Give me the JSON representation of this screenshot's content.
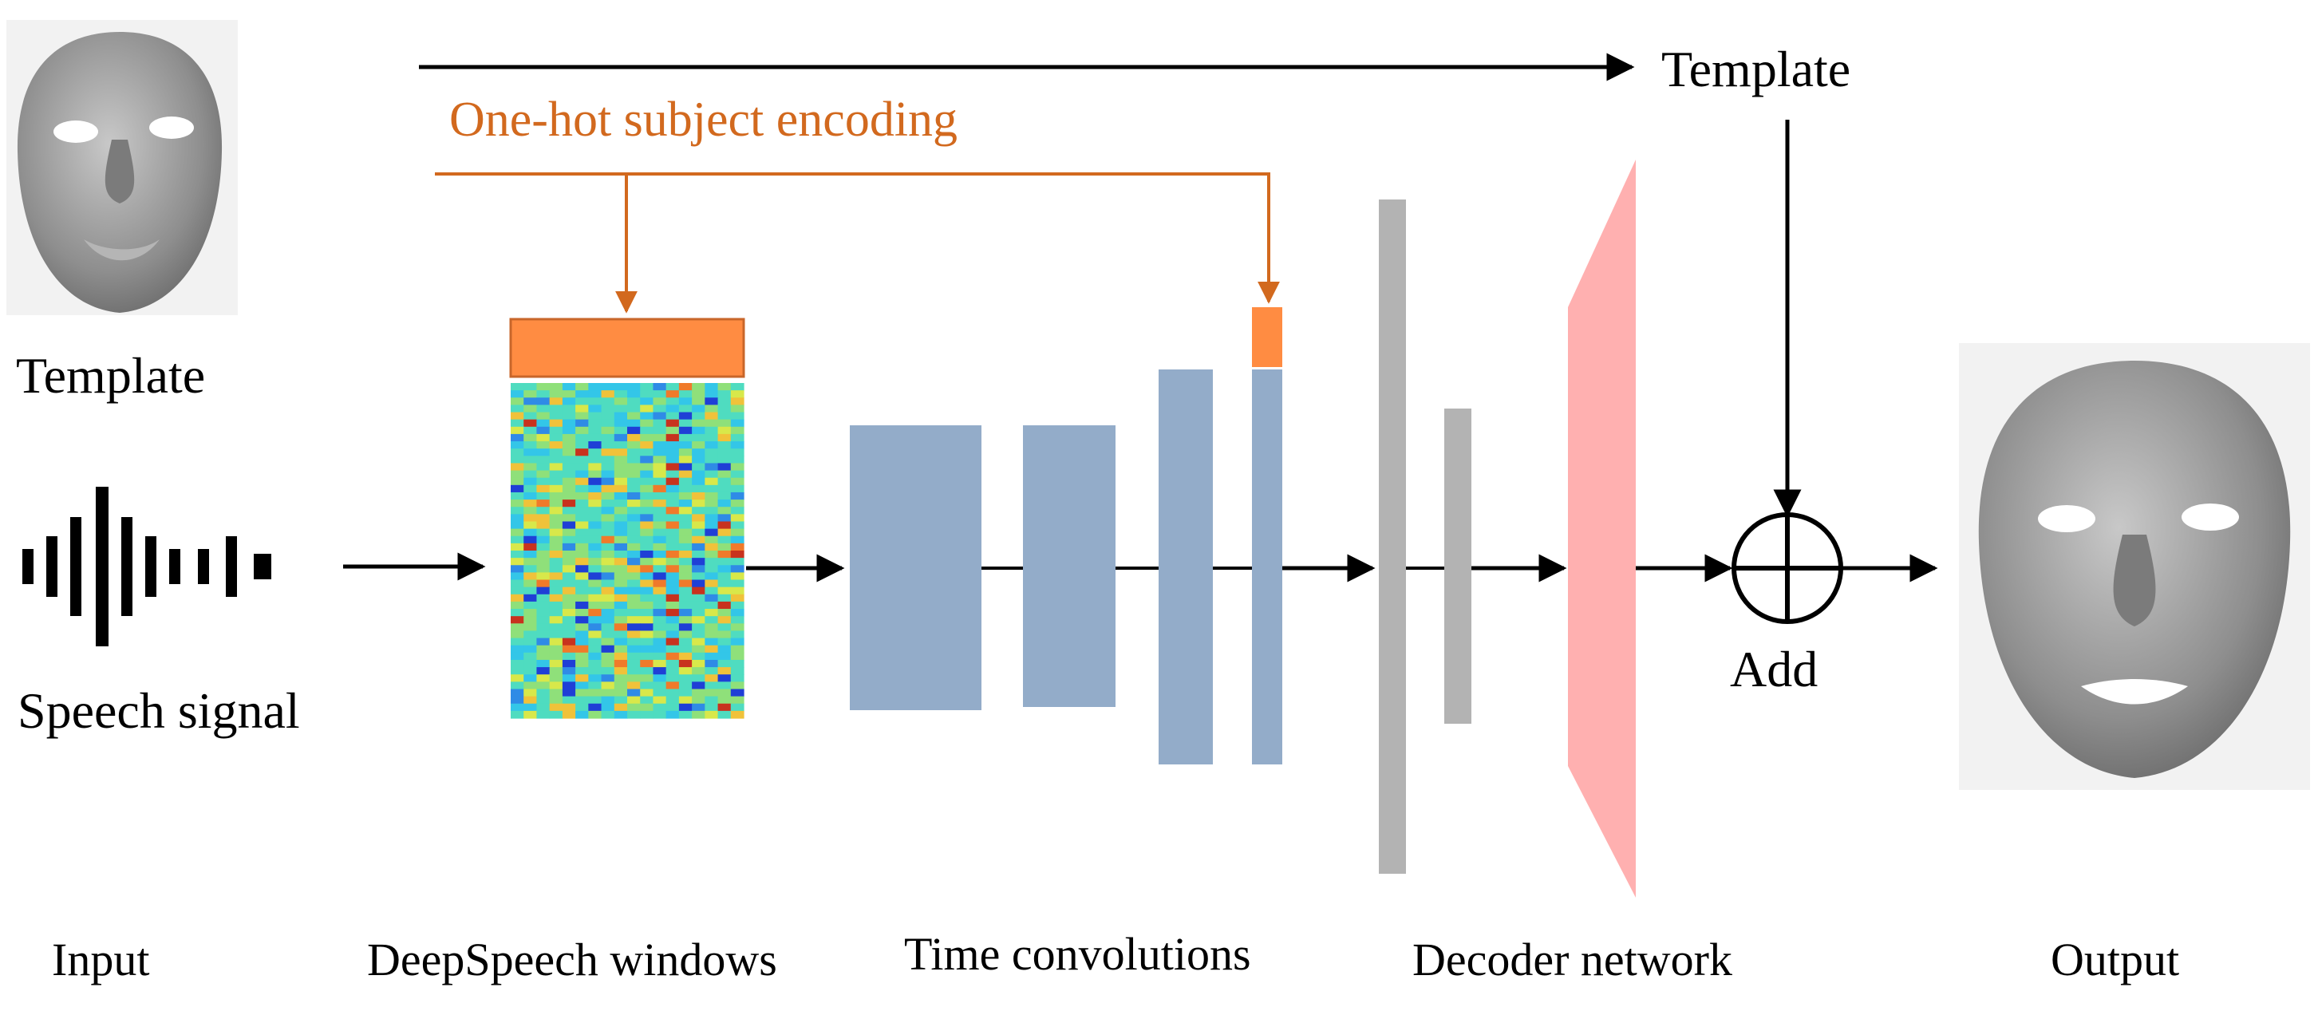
{
  "labels": {
    "template_top_right": "Template",
    "one_hot": "One-hot subject encoding",
    "template_input": "Template",
    "speech_signal": "Speech signal",
    "add": "Add"
  },
  "stage_labels": {
    "input": "Input",
    "deepspeech": "DeepSpeech windows",
    "time_conv": "Time convolutions",
    "decoder": "Decoder network",
    "output": "Output"
  },
  "colors": {
    "arrow": "#000000",
    "onehot": "#d2691e",
    "onehot_fill": "#ff8c42",
    "conv_block": "#93acc9",
    "fc_block": "#b3b3b3",
    "decoder": "#ffb0b0",
    "face": "#9a9a9a"
  },
  "icons": {
    "input_face": "face-mesh-icon",
    "output_face": "face-mesh-icon",
    "speech": "waveform-icon",
    "add": "circled-plus-icon"
  }
}
